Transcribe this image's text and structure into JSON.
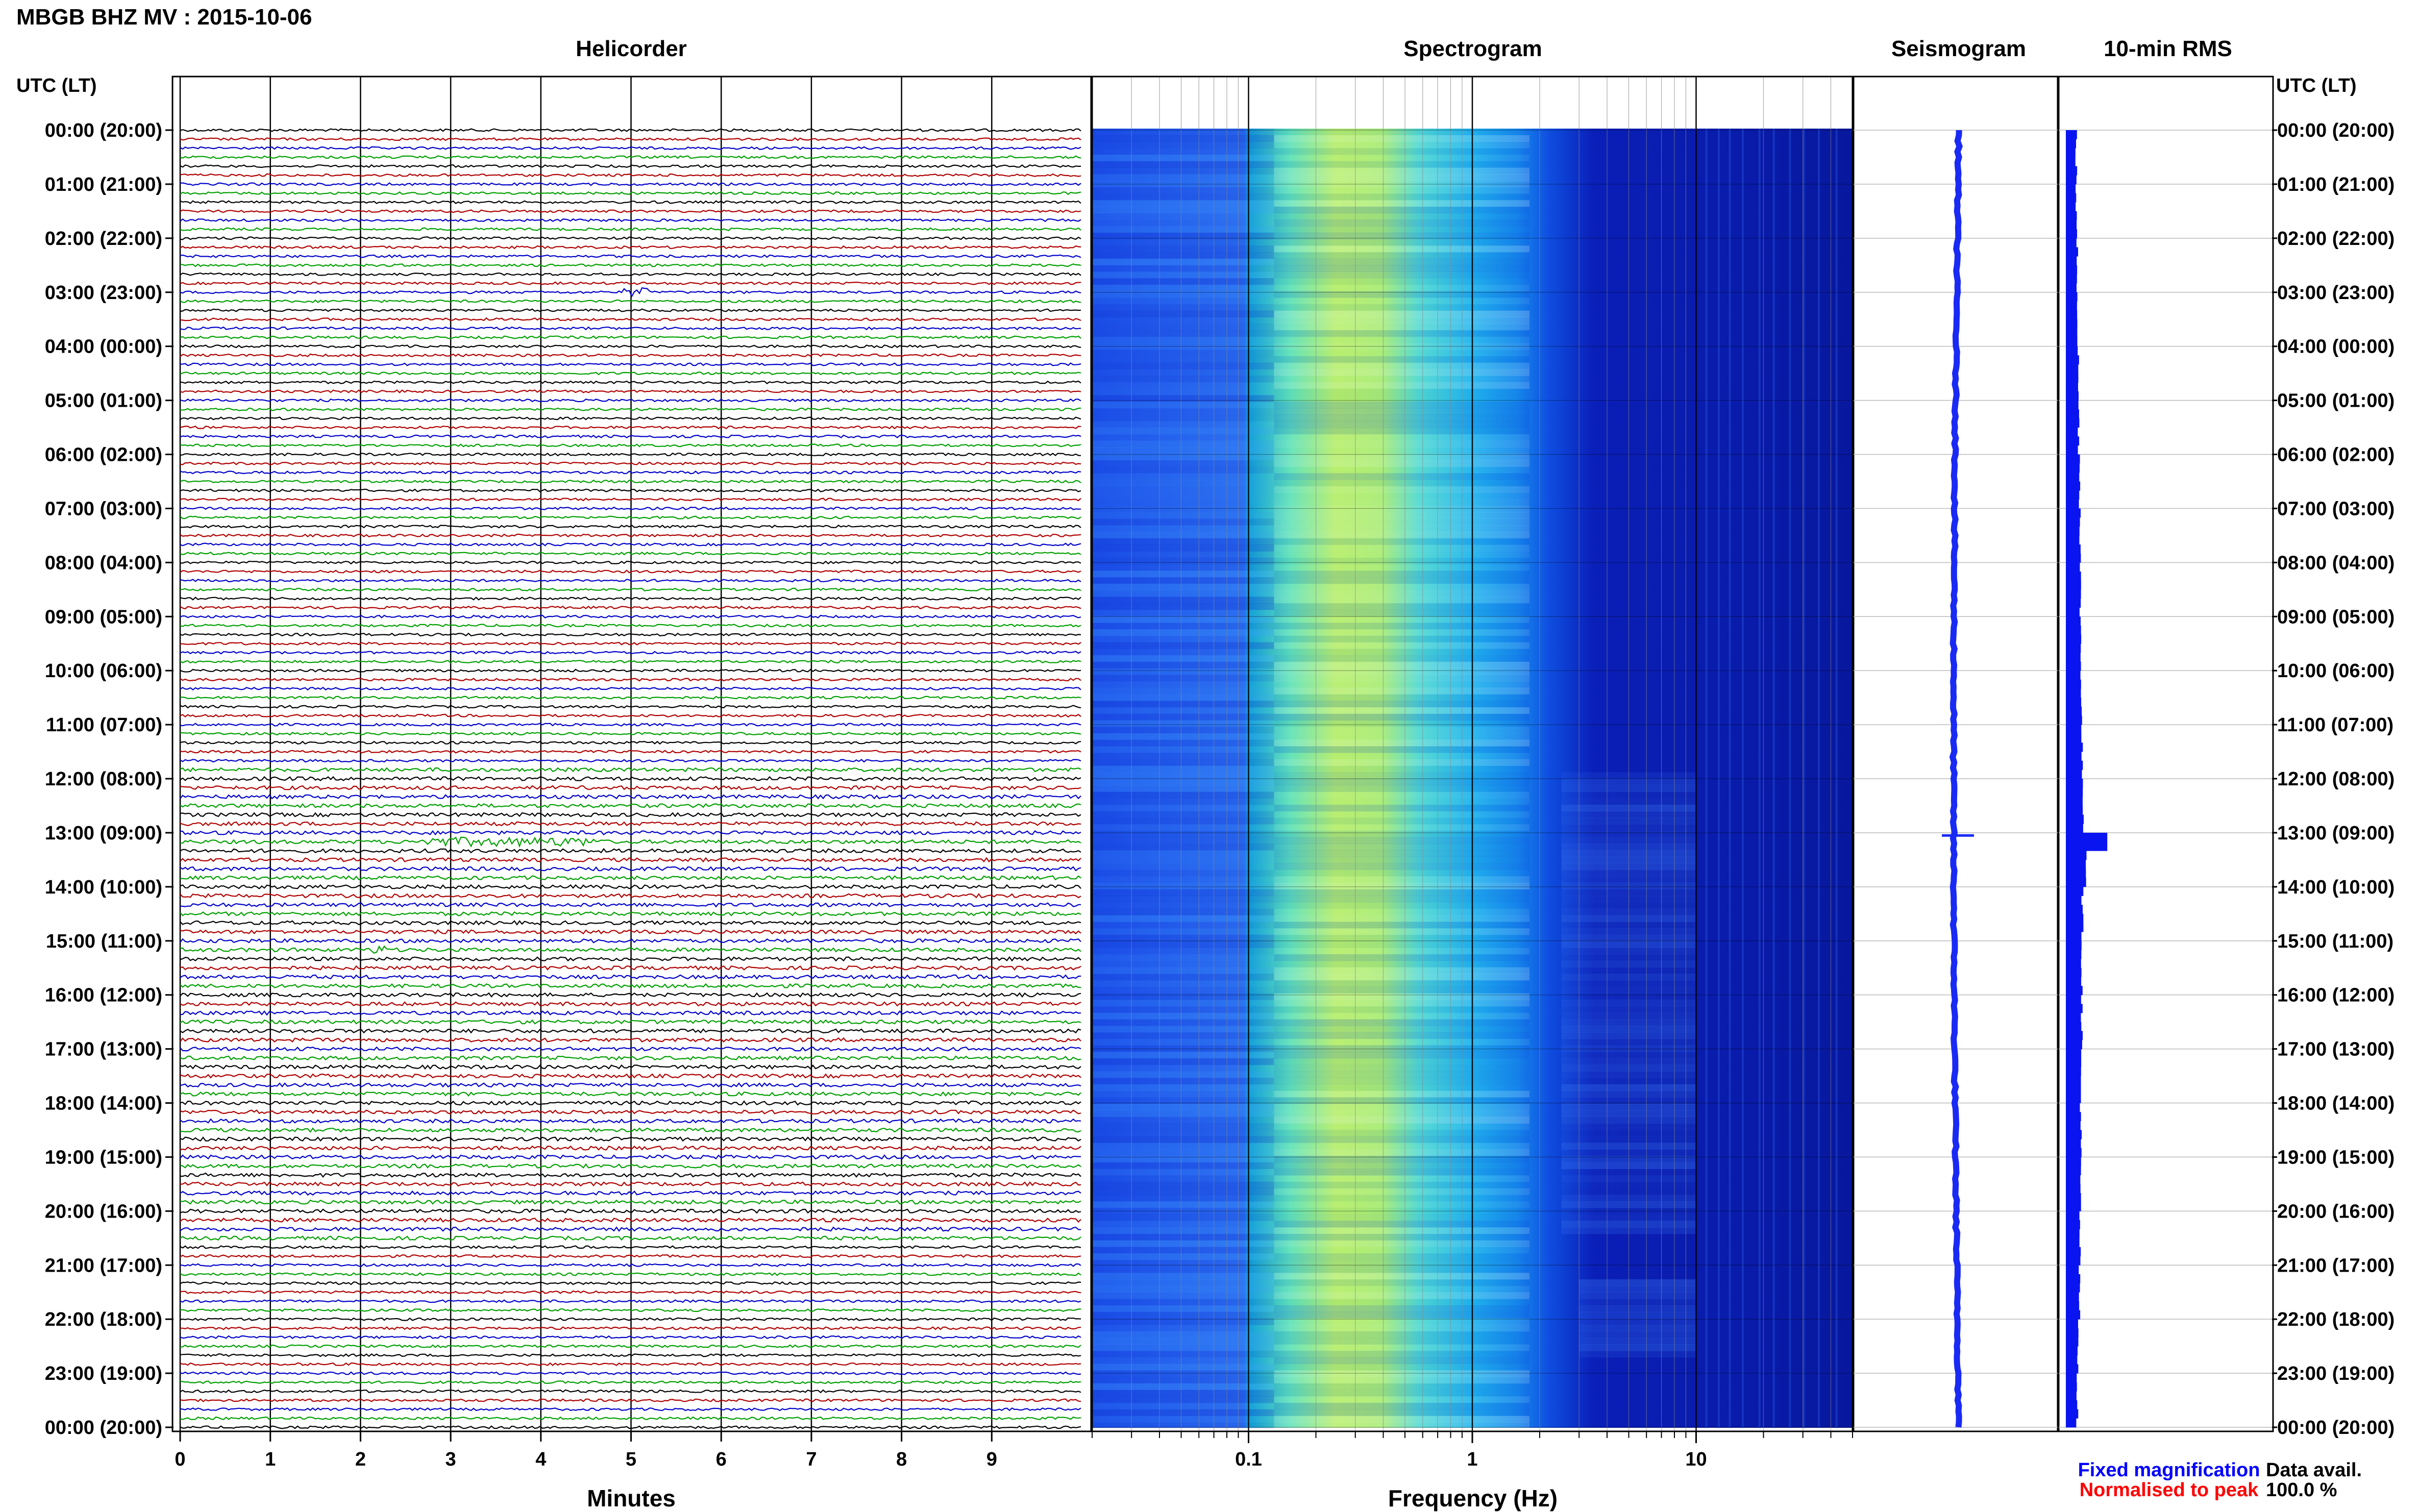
{
  "page": {
    "title": "MBGB BHZ MV : 2015-10-06",
    "panel_titles": {
      "helicorder": "Helicorder",
      "spectrogram": "Spectrogram",
      "seismogram": "Seismogram",
      "rms": "10-min RMS"
    },
    "time_axis_header": "UTC (LT)",
    "legend": {
      "fixed": "Fixed magnification",
      "normalised": "Normalised to peak",
      "data_avail_label": "Data avail.",
      "data_avail_value": "100.0 %"
    },
    "colors": {
      "trace_black": "#000000",
      "trace_red": "#b00000",
      "trace_blue": "#0000cc",
      "trace_green": "#00a000",
      "fixed_legend": "#0000ff",
      "normalised_legend": "#ff0000",
      "rms_bar": "#0a14f0"
    }
  },
  "chart_data": [
    {
      "type": "line",
      "panel": "Helicorder",
      "xlabel": "Minutes",
      "x_ticks": [
        "0",
        "1",
        "2",
        "3",
        "4",
        "5",
        "6",
        "7",
        "8",
        "9"
      ],
      "xlim": [
        0,
        10
      ],
      "y_tick_labels": [
        "00:00 (20:00)",
        "01:00 (21:00)",
        "02:00 (22:00)",
        "03:00 (23:00)",
        "04:00 (00:00)",
        "05:00 (01:00)",
        "06:00 (02:00)",
        "07:00 (03:00)",
        "08:00 (04:00)",
        "09:00 (05:00)",
        "10:00 (06:00)",
        "11:00 (07:00)",
        "12:00 (08:00)",
        "13:00 (09:00)",
        "14:00 (10:00)",
        "15:00 (11:00)",
        "16:00 (12:00)",
        "17:00 (13:00)",
        "18:00 (14:00)",
        "19:00 (15:00)",
        "20:00 (16:00)",
        "21:00 (17:00)",
        "22:00 (18:00)",
        "23:00 (19:00)",
        "00:00 (20:00)"
      ],
      "rows_per_hour": 6,
      "trace_color_cycle": [
        "black",
        "red",
        "blue",
        "green"
      ],
      "events": [
        {
          "hour": 3.0,
          "minute_start": 4.9,
          "minute_end": 5.2,
          "color": "green"
        },
        {
          "hour": 13.1,
          "minute_start": 2.6,
          "minute_end": 4.6,
          "color": "green"
        },
        {
          "hour": 15.1,
          "minute_start": 2.1,
          "minute_end": 2.3,
          "color": "green"
        }
      ]
    },
    {
      "type": "heatmap",
      "panel": "Spectrogram",
      "xlabel": "Frequency (Hz)",
      "x_scale": "log",
      "x_ticks": [
        "0.1",
        "1",
        "10"
      ],
      "xlim": [
        0.02,
        50
      ],
      "colormap": "jet",
      "peak_band_hz": [
        0.2,
        0.5
      ],
      "low_energy_above_hz": 2.0
    },
    {
      "type": "line",
      "panel": "Seismogram",
      "description_values": {
        "spike_hour": 13.05
      }
    },
    {
      "type": "bar",
      "panel": "10-min RMS",
      "orientation": "horizontal",
      "bins": 144,
      "relative_levels_by_hour": [
        0.2,
        0.2,
        0.22,
        0.23,
        0.24,
        0.25,
        0.27,
        0.28,
        0.28,
        0.29,
        0.3,
        0.31,
        0.34,
        0.4,
        0.32,
        0.31,
        0.31,
        0.29,
        0.29,
        0.28,
        0.27,
        0.26,
        0.24,
        0.22
      ],
      "peak_hour": 13.1
    }
  ]
}
